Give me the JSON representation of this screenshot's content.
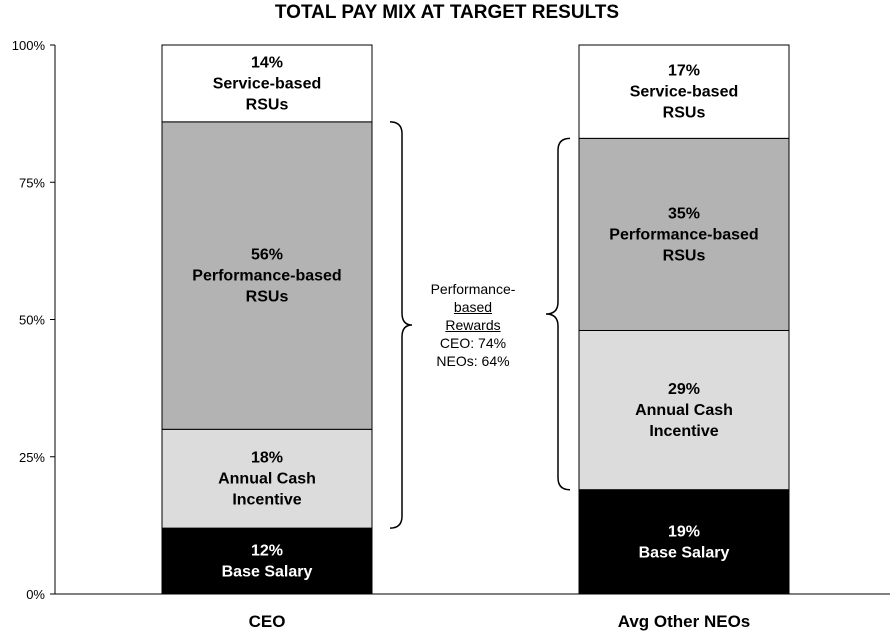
{
  "chart_data": {
    "type": "bar",
    "stacked": true,
    "title": "TOTAL PAY MIX AT TARGET RESULTS",
    "categories": [
      "CEO",
      "Avg Other NEOs"
    ],
    "ylim": [
      0,
      100
    ],
    "yticks": [
      "0%",
      "25%",
      "50%",
      "75%",
      "100%"
    ],
    "grid": false,
    "series": [
      {
        "name": "Base Salary",
        "values": [
          12,
          19
        ],
        "color": "#000000",
        "label_color": "#ffffff",
        "labels": [
          [
            "12%",
            "Base Salary"
          ],
          [
            "19%",
            "Base Salary"
          ]
        ]
      },
      {
        "name": "Annual Cash Incentive",
        "values": [
          18,
          29
        ],
        "color": "#dcdcdc",
        "label_color": "#000000",
        "labels": [
          [
            "18%",
            "Annual Cash",
            "Incentive"
          ],
          [
            "29%",
            "Annual Cash",
            "Incentive"
          ]
        ]
      },
      {
        "name": "Performance-based RSUs",
        "values": [
          56,
          35
        ],
        "color": "#b3b3b3",
        "label_color": "#000000",
        "labels": [
          [
            "56%",
            "Performance-based",
            "RSUs"
          ],
          [
            "35%",
            "Performance-based",
            "RSUs"
          ]
        ]
      },
      {
        "name": "Service-based RSUs",
        "values": [
          14,
          17
        ],
        "color": "#ffffff",
        "label_color": "#000000",
        "labels": [
          [
            "14%",
            "Service-based",
            "RSUs"
          ],
          [
            "17%",
            "Service-based",
            "RSUs"
          ]
        ]
      }
    ],
    "annotation": {
      "line1": "Performance-",
      "line2": "based",
      "line3": "Rewards",
      "line4": "CEO: 74%",
      "line5": "NEOs: 64%"
    }
  }
}
